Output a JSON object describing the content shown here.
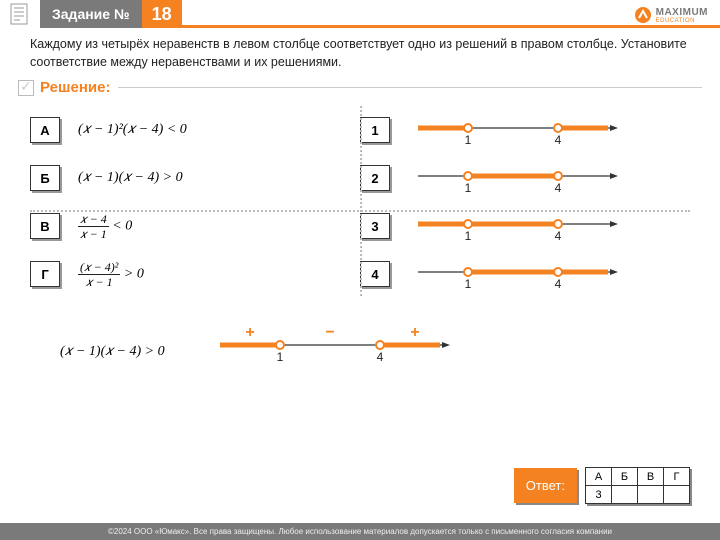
{
  "header": {
    "label": "Задание №",
    "num": "18"
  },
  "logo": {
    "main": "MAXIMUM",
    "sub": "EDUCATION"
  },
  "instr": "Каждому из четырёх неравенств в левом столбце соответствует одно из решений в правом столбце. Установите соответствие между неравенствами и их решениями.",
  "solution_label": "Решение:",
  "left": [
    {
      "k": "А",
      "eq": "(𝑥 − 1)²(𝑥 − 4) < 0"
    },
    {
      "k": "Б",
      "eq": "(𝑥 − 1)(𝑥 − 4) > 0"
    },
    {
      "k": "В",
      "eq_frac": {
        "n": "𝑥 − 4",
        "d": "𝑥 − 1"
      },
      "tail": " < 0"
    },
    {
      "k": "Г",
      "eq_frac": {
        "n": "(𝑥 − 4)²",
        "d": "𝑥 − 1"
      },
      "tail": " > 0"
    }
  ],
  "right": [
    {
      "k": "1",
      "p1": 50,
      "p2": 140,
      "segs": [
        [
          0,
          50
        ],
        [
          140,
          190
        ]
      ],
      "l1": "1",
      "l2": "4"
    },
    {
      "k": "2",
      "p1": 50,
      "p2": 140,
      "segs": [
        [
          50,
          140
        ]
      ],
      "l1": "1",
      "l2": "4"
    },
    {
      "k": "3",
      "p1": 50,
      "p2": 140,
      "segs": [
        [
          0,
          140
        ]
      ],
      "l1": "1",
      "l2": "4"
    },
    {
      "k": "4",
      "p1": 50,
      "p2": 140,
      "segs": [
        [
          50,
          190
        ]
      ],
      "l1": "1",
      "l2": "4"
    }
  ],
  "below_eq": "(𝑥 − 1)(𝑥 − 4) > 0",
  "below_line": {
    "p1": 60,
    "p2": 160,
    "segs": [
      [
        0,
        60
      ],
      [
        160,
        220
      ]
    ],
    "l1": "1",
    "l2": "4",
    "signs": [
      "+",
      "−",
      "+"
    ]
  },
  "answer_label": "Ответ:",
  "ans_head": [
    "А",
    "Б",
    "В",
    "Г"
  ],
  "ans_vals": [
    "3",
    "",
    "",
    ""
  ],
  "colors": {
    "orange": "#f58220",
    "axis": "#333"
  },
  "footer": "©2024 ООО «Юмакс». Все права защищены. Любое использование материалов допускается только с письменного согласия компании"
}
